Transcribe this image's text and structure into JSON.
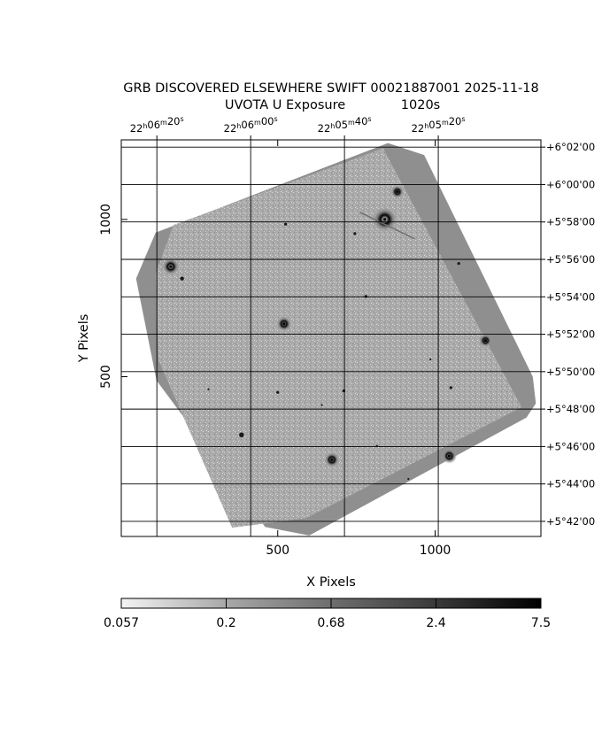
{
  "header": {
    "title": "GRB DISCOVERED ELSEWHERE SWIFT 00021887001 2025-11-18",
    "subtitle_left": "UVOTA U Exposure",
    "subtitle_right": "1020s"
  },
  "chart_data": {
    "type": "heatmap",
    "xlabel": "X Pixels",
    "ylabel": "Y Pixels",
    "xlim": [
      3,
      1336
    ],
    "ylim": [
      -8,
      1253
    ],
    "x_ticks": [
      500,
      1000
    ],
    "y_ticks": [
      500,
      1000
    ],
    "ra_ticks": [
      {
        "h": "22",
        "m": "06",
        "s": "20",
        "x": 116
      },
      {
        "h": "22",
        "m": "06",
        "s": "00",
        "x": 414
      },
      {
        "h": "22",
        "m": "05",
        "s": "40",
        "x": 712
      },
      {
        "h": "22",
        "m": "05",
        "s": "20",
        "x": 1010
      }
    ],
    "dec_ticks": [
      {
        "label": "+6°02'00",
        "y": 1230
      },
      {
        "label": "+6°00'00",
        "y": 1111
      },
      {
        "label": "+5°58'00",
        "y": 992
      },
      {
        "label": "+5°56'00",
        "y": 873
      },
      {
        "label": "+5°54'00",
        "y": 754
      },
      {
        "label": "+5°52'00",
        "y": 635
      },
      {
        "label": "+5°50'00",
        "y": 516
      },
      {
        "label": "+5°48'00",
        "y": 397
      },
      {
        "label": "+5°46'00",
        "y": 278
      },
      {
        "label": "+5°44'00",
        "y": 159
      },
      {
        "label": "+5°42'00",
        "y": 40
      }
    ],
    "colorbar": {
      "ticks": [
        {
          "label": "0.057",
          "frac": 0.0
        },
        {
          "label": "0.2",
          "frac": 0.25
        },
        {
          "label": "0.68",
          "frac": 0.5
        },
        {
          "label": "2.4",
          "frac": 0.75
        },
        {
          "label": "7.5",
          "frac": 1.0
        }
      ],
      "scale": "log"
    },
    "exposure_region": {
      "outer": [
        [
          50,
          812
        ],
        [
          112,
          958
        ],
        [
          850,
          1243
        ],
        [
          965,
          1205
        ],
        [
          1310,
          500
        ],
        [
          1320,
          415
        ],
        [
          1290,
          370
        ],
        [
          600,
          -5
        ],
        [
          460,
          22
        ],
        [
          115,
          488
        ]
      ],
      "main": [
        [
          112,
          826
        ],
        [
          168,
          982
        ],
        [
          835,
          1226
        ],
        [
          1275,
          403
        ],
        [
          590,
          50
        ],
        [
          355,
          20
        ],
        [
          122,
          550
        ]
      ]
    },
    "sources": [
      {
        "x": 160,
        "y": 850,
        "r": 9
      },
      {
        "x": 520,
        "y": 668,
        "r": 8
      },
      {
        "x": 840,
        "y": 1000,
        "r": 13
      },
      {
        "x": 880,
        "y": 1088,
        "r": 7
      },
      {
        "x": 1160,
        "y": 615,
        "r": 7
      },
      {
        "x": 1045,
        "y": 248,
        "r": 8
      },
      {
        "x": 672,
        "y": 236,
        "r": 8
      },
      {
        "x": 385,
        "y": 315,
        "r": 5
      },
      {
        "x": 196,
        "y": 812,
        "r": 4
      },
      {
        "x": 525,
        "y": 985,
        "r": 3
      },
      {
        "x": 745,
        "y": 955,
        "r": 3
      },
      {
        "x": 780,
        "y": 755,
        "r": 3
      },
      {
        "x": 710,
        "y": 455,
        "r": 3
      },
      {
        "x": 1050,
        "y": 465,
        "r": 3
      },
      {
        "x": 1075,
        "y": 860,
        "r": 3
      },
      {
        "x": 500,
        "y": 450,
        "r": 3
      },
      {
        "x": 640,
        "y": 410,
        "r": 2
      },
      {
        "x": 815,
        "y": 280,
        "r": 2
      },
      {
        "x": 915,
        "y": 175,
        "r": 2
      },
      {
        "x": 280,
        "y": 460,
        "r": 2
      },
      {
        "x": 985,
        "y": 555,
        "r": 2
      }
    ]
  }
}
